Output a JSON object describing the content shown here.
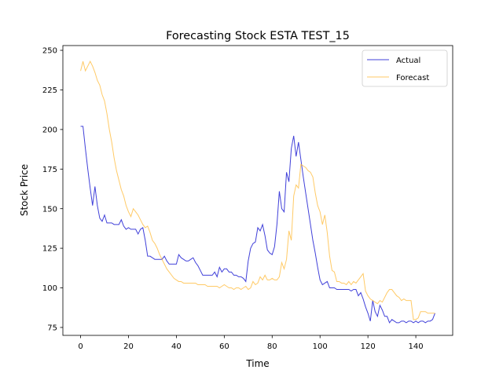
{
  "chart_data": {
    "type": "line",
    "title": "Forecasting Stock ESTA TEST_15",
    "xlabel": "Time",
    "ylabel": "Stock Price",
    "xlim": [
      -7.4,
      155.4
    ],
    "ylim": [
      70,
      253
    ],
    "xticks": [
      0,
      20,
      40,
      60,
      80,
      100,
      120,
      140
    ],
    "yticks": [
      75,
      100,
      125,
      150,
      175,
      200,
      225,
      250
    ],
    "grid": false,
    "legend_position": "top-right",
    "series": [
      {
        "name": "Actual",
        "color": "#0000cc",
        "points": [
          [
            0,
            202
          ],
          [
            1,
            202
          ],
          [
            2,
            188
          ],
          [
            3,
            175
          ],
          [
            4,
            163
          ],
          [
            5,
            152
          ],
          [
            6,
            164
          ],
          [
            7,
            152
          ],
          [
            8,
            144
          ],
          [
            9,
            142
          ],
          [
            10,
            146
          ],
          [
            11,
            141
          ],
          [
            12,
            141
          ],
          [
            13,
            141
          ],
          [
            14,
            140
          ],
          [
            15,
            140
          ],
          [
            16,
            140
          ],
          [
            17,
            143
          ],
          [
            18,
            139
          ],
          [
            19,
            137
          ],
          [
            20,
            138
          ],
          [
            21,
            137
          ],
          [
            22,
            137
          ],
          [
            23,
            137
          ],
          [
            24,
            134
          ],
          [
            25,
            137
          ],
          [
            26,
            138
          ],
          [
            27,
            130
          ],
          [
            28,
            120
          ],
          [
            29,
            120
          ],
          [
            30,
            119
          ],
          [
            31,
            118
          ],
          [
            32,
            118
          ],
          [
            33,
            118
          ],
          [
            34,
            118
          ],
          [
            35,
            120
          ],
          [
            36,
            117
          ],
          [
            37,
            115
          ],
          [
            38,
            115
          ],
          [
            39,
            115
          ],
          [
            40,
            115
          ],
          [
            41,
            121
          ],
          [
            42,
            119
          ],
          [
            43,
            118
          ],
          [
            44,
            117
          ],
          [
            45,
            117
          ],
          [
            46,
            118
          ],
          [
            47,
            119
          ],
          [
            48,
            116
          ],
          [
            49,
            114
          ],
          [
            50,
            111
          ],
          [
            51,
            108
          ],
          [
            52,
            108
          ],
          [
            53,
            108
          ],
          [
            54,
            108
          ],
          [
            55,
            108
          ],
          [
            56,
            110
          ],
          [
            57,
            107
          ],
          [
            58,
            113
          ],
          [
            59,
            110
          ],
          [
            60,
            112
          ],
          [
            61,
            112
          ],
          [
            62,
            110
          ],
          [
            63,
            110
          ],
          [
            64,
            108
          ],
          [
            65,
            108
          ],
          [
            66,
            107
          ],
          [
            67,
            107
          ],
          [
            68,
            106
          ],
          [
            69,
            104
          ],
          [
            70,
            117
          ],
          [
            71,
            125
          ],
          [
            72,
            128
          ],
          [
            73,
            129
          ],
          [
            74,
            138
          ],
          [
            75,
            136
          ],
          [
            76,
            140
          ],
          [
            77,
            133
          ],
          [
            78,
            124
          ],
          [
            79,
            122
          ],
          [
            80,
            121
          ],
          [
            81,
            126
          ],
          [
            82,
            140
          ],
          [
            83,
            161
          ],
          [
            84,
            150
          ],
          [
            85,
            148
          ],
          [
            86,
            173
          ],
          [
            87,
            167
          ],
          [
            88,
            188
          ],
          [
            89,
            196
          ],
          [
            90,
            183
          ],
          [
            91,
            192
          ],
          [
            92,
            181
          ],
          [
            93,
            170
          ],
          [
            94,
            160
          ],
          [
            95,
            150
          ],
          [
            96,
            140
          ],
          [
            97,
            130
          ],
          [
            98,
            122
          ],
          [
            99,
            113
          ],
          [
            100,
            105
          ],
          [
            101,
            102
          ],
          [
            102,
            103
          ],
          [
            103,
            104
          ],
          [
            104,
            100
          ],
          [
            105,
            100
          ],
          [
            106,
            100
          ],
          [
            107,
            99
          ],
          [
            108,
            99
          ],
          [
            109,
            99
          ],
          [
            110,
            99
          ],
          [
            111,
            99
          ],
          [
            112,
            99
          ],
          [
            113,
            98
          ],
          [
            114,
            99
          ],
          [
            115,
            99
          ],
          [
            116,
            95
          ],
          [
            117,
            97
          ],
          [
            118,
            93
          ],
          [
            119,
            88
          ],
          [
            120,
            84
          ],
          [
            121,
            79
          ],
          [
            122,
            92
          ],
          [
            123,
            85
          ],
          [
            124,
            82
          ],
          [
            125,
            89
          ],
          [
            126,
            86
          ],
          [
            127,
            82
          ],
          [
            128,
            82
          ],
          [
            129,
            78
          ],
          [
            130,
            80
          ],
          [
            131,
            79
          ],
          [
            132,
            78
          ],
          [
            133,
            78
          ],
          [
            134,
            79
          ],
          [
            135,
            79
          ],
          [
            136,
            78
          ],
          [
            137,
            79
          ],
          [
            138,
            79
          ],
          [
            139,
            78
          ],
          [
            140,
            79
          ],
          [
            141,
            78
          ],
          [
            142,
            79
          ],
          [
            143,
            79
          ],
          [
            144,
            78
          ],
          [
            145,
            79
          ],
          [
            146,
            79
          ],
          [
            147,
            80
          ],
          [
            148,
            84
          ]
        ]
      },
      {
        "name": "Forecast",
        "color": "#ffb833",
        "points": [
          [
            0,
            237
          ],
          [
            1,
            243
          ],
          [
            2,
            237
          ],
          [
            3,
            240
          ],
          [
            4,
            243
          ],
          [
            5,
            240
          ],
          [
            6,
            236
          ],
          [
            7,
            231
          ],
          [
            8,
            228
          ],
          [
            9,
            222
          ],
          [
            10,
            218
          ],
          [
            11,
            210
          ],
          [
            12,
            200
          ],
          [
            13,
            192
          ],
          [
            14,
            182
          ],
          [
            15,
            174
          ],
          [
            16,
            168
          ],
          [
            17,
            162
          ],
          [
            18,
            158
          ],
          [
            19,
            152
          ],
          [
            20,
            148
          ],
          [
            21,
            145
          ],
          [
            22,
            150
          ],
          [
            23,
            148
          ],
          [
            24,
            146
          ],
          [
            25,
            143
          ],
          [
            26,
            140
          ],
          [
            27,
            138
          ],
          [
            28,
            139
          ],
          [
            29,
            135
          ],
          [
            30,
            130
          ],
          [
            31,
            128
          ],
          [
            32,
            125
          ],
          [
            33,
            121
          ],
          [
            34,
            118
          ],
          [
            35,
            115
          ],
          [
            36,
            112
          ],
          [
            37,
            110
          ],
          [
            38,
            108
          ],
          [
            39,
            106
          ],
          [
            40,
            105
          ],
          [
            41,
            104
          ],
          [
            42,
            104
          ],
          [
            43,
            103
          ],
          [
            44,
            103
          ],
          [
            45,
            103
          ],
          [
            46,
            103
          ],
          [
            47,
            103
          ],
          [
            48,
            103
          ],
          [
            49,
            102
          ],
          [
            50,
            102
          ],
          [
            51,
            102
          ],
          [
            52,
            102
          ],
          [
            53,
            101
          ],
          [
            54,
            101
          ],
          [
            55,
            101
          ],
          [
            56,
            101
          ],
          [
            57,
            101
          ],
          [
            58,
            100
          ],
          [
            59,
            101
          ],
          [
            60,
            102
          ],
          [
            61,
            101
          ],
          [
            62,
            100
          ],
          [
            63,
            100
          ],
          [
            64,
            99
          ],
          [
            65,
            100
          ],
          [
            66,
            100
          ],
          [
            67,
            99
          ],
          [
            68,
            100
          ],
          [
            69,
            101
          ],
          [
            70,
            99
          ],
          [
            71,
            100
          ],
          [
            72,
            104
          ],
          [
            73,
            102
          ],
          [
            74,
            103
          ],
          [
            75,
            107
          ],
          [
            76,
            105
          ],
          [
            77,
            108
          ],
          [
            78,
            105
          ],
          [
            79,
            105
          ],
          [
            80,
            106
          ],
          [
            81,
            105
          ],
          [
            82,
            105
          ],
          [
            83,
            107
          ],
          [
            84,
            116
          ],
          [
            85,
            112
          ],
          [
            86,
            118
          ],
          [
            87,
            136
          ],
          [
            88,
            130
          ],
          [
            89,
            158
          ],
          [
            90,
            165
          ],
          [
            91,
            163
          ],
          [
            92,
            178
          ],
          [
            93,
            177
          ],
          [
            94,
            176
          ],
          [
            95,
            174
          ],
          [
            96,
            173
          ],
          [
            97,
            170
          ],
          [
            98,
            160
          ],
          [
            99,
            152
          ],
          [
            100,
            148
          ],
          [
            101,
            140
          ],
          [
            102,
            146
          ],
          [
            103,
            135
          ],
          [
            104,
            120
          ],
          [
            105,
            111
          ],
          [
            106,
            110
          ],
          [
            107,
            104
          ],
          [
            108,
            104
          ],
          [
            109,
            103
          ],
          [
            110,
            103
          ],
          [
            111,
            102
          ],
          [
            112,
            104
          ],
          [
            113,
            102
          ],
          [
            114,
            104
          ],
          [
            115,
            103
          ],
          [
            116,
            105
          ],
          [
            117,
            107
          ],
          [
            118,
            109
          ],
          [
            119,
            98
          ],
          [
            120,
            95
          ],
          [
            121,
            93
          ],
          [
            122,
            92
          ],
          [
            123,
            91
          ],
          [
            124,
            90
          ],
          [
            125,
            92
          ],
          [
            126,
            91
          ],
          [
            127,
            94
          ],
          [
            128,
            97
          ],
          [
            129,
            99
          ],
          [
            130,
            99
          ],
          [
            131,
            97
          ],
          [
            132,
            95
          ],
          [
            133,
            94
          ],
          [
            134,
            92
          ],
          [
            135,
            93
          ],
          [
            136,
            92
          ],
          [
            137,
            92
          ],
          [
            138,
            92
          ],
          [
            139,
            80
          ],
          [
            140,
            80
          ],
          [
            141,
            81
          ],
          [
            142,
            85
          ],
          [
            143,
            85
          ],
          [
            144,
            85
          ],
          [
            145,
            84
          ],
          [
            146,
            84
          ],
          [
            147,
            84
          ],
          [
            148,
            84
          ]
        ]
      }
    ]
  }
}
